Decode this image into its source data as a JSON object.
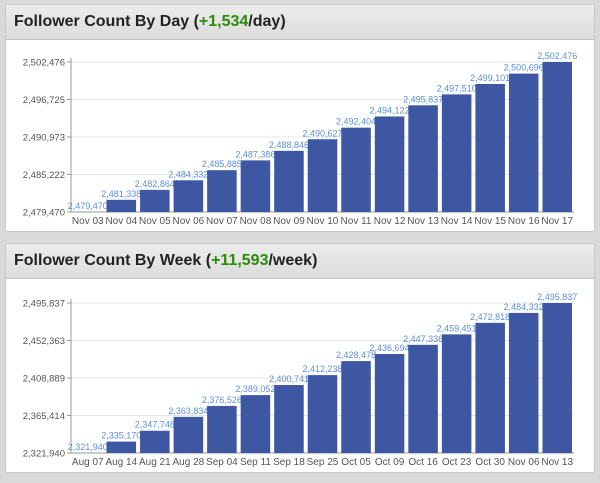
{
  "chart_data": [
    {
      "type": "bar",
      "title": "Follower Count By Day",
      "rate": "+1,534",
      "unit": "/day",
      "categories": [
        "Nov 03",
        "Nov 04",
        "Nov 05",
        "Nov 06",
        "Nov 07",
        "Nov 08",
        "Nov 09",
        "Nov 10",
        "Nov 11",
        "Nov 12",
        "Nov 13",
        "Nov 14",
        "Nov 15",
        "Nov 16",
        "Nov 17"
      ],
      "values": [
        2479470,
        2481338,
        2482864,
        2484332,
        2485885,
        2487386,
        2488846,
        2490627,
        2492404,
        2494122,
        2495837,
        2497510,
        2499101,
        2500696,
        2502476
      ],
      "value_labels": [
        "2,479,470",
        "2,481,338",
        "2,482,864",
        "2,484,332",
        "2,485,885",
        "2,487,386",
        "2,488,846",
        "2,490,627",
        "2,492,404",
        "2,494,122",
        "2,495,837",
        "2,497,510",
        "2,499,101",
        "2,500,696",
        "2,502,476"
      ],
      "yticks": [
        2479470,
        2485222,
        2490973,
        2496725,
        2502476
      ],
      "ytick_labels": [
        "2,479,470",
        "2,485,222",
        "2,490,973",
        "2,496,725",
        "2,502,476"
      ],
      "ylim": [
        2479470,
        2502476
      ],
      "bar_color": "#3d57a3",
      "label_color": "#5b8fd6"
    },
    {
      "type": "bar",
      "title": "Follower Count By Week",
      "rate": "+11,593",
      "unit": "/week",
      "categories": [
        "Aug 07",
        "Aug 14",
        "Aug 21",
        "Aug 28",
        "Sep 04",
        "Sep 11",
        "Sep 18",
        "Sep 25",
        "Oct 05",
        "Oct 09",
        "Oct 16",
        "Oct 23",
        "Oct 30",
        "Nov 06",
        "Nov 13"
      ],
      "values": [
        2321940,
        2335170,
        2347748,
        2363834,
        2376526,
        2389052,
        2400741,
        2412238,
        2428478,
        2436694,
        2447336,
        2459451,
        2472818,
        2484332,
        2495837
      ],
      "value_labels": [
        "2,321,940",
        "2,335,170",
        "2,347,748",
        "2,363,834",
        "2,376,526",
        "2,389,052",
        "2,400,741",
        "2,412,238",
        "2,428,478",
        "2,436,694",
        "2,447,336",
        "2,459,451",
        "2,472,818",
        "2,484,332",
        "2,495,837"
      ],
      "yticks": [
        2321940,
        2365414,
        2408889,
        2452363,
        2495837
      ],
      "ytick_labels": [
        "2,321,940",
        "2,365,414",
        "2,408,889",
        "2,452,363",
        "2,495,837"
      ],
      "ylim": [
        2321940,
        2495837
      ],
      "bar_color": "#3d57a3",
      "label_color": "#5b8fd6"
    }
  ]
}
